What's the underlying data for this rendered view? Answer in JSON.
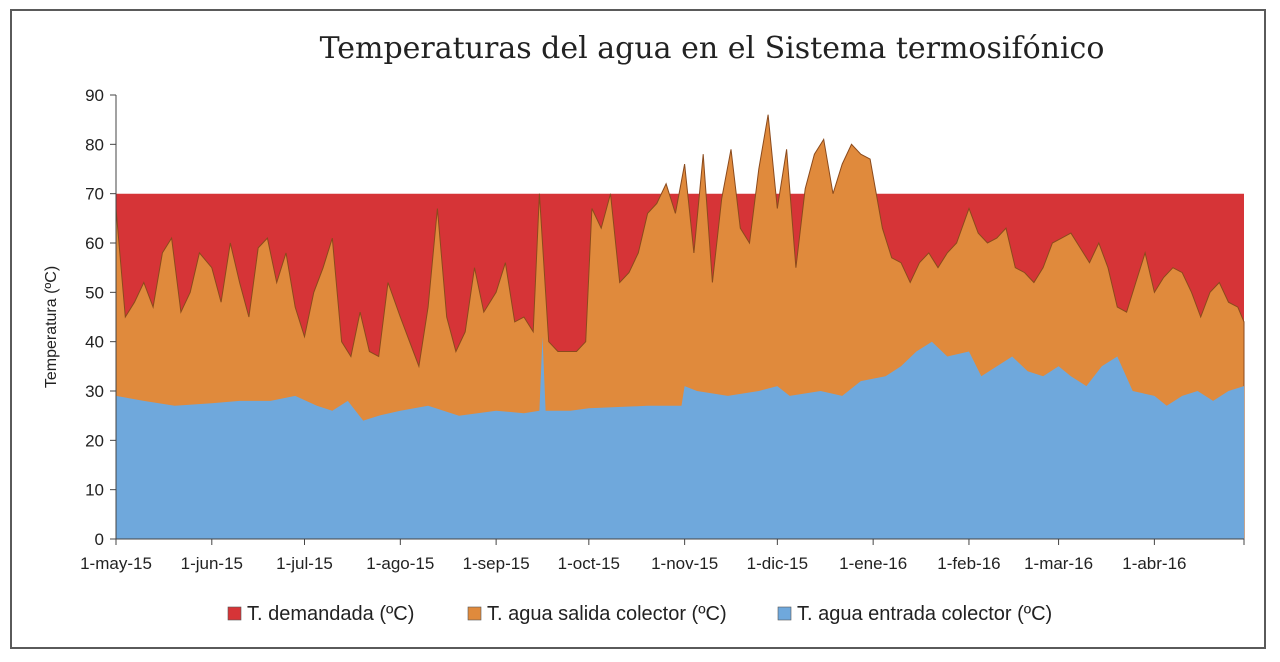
{
  "chart_data": {
    "type": "area",
    "title": "Temperaturas del agua en el Sistema termosifónico",
    "ylabel": "Temperatura (ºC)",
    "xlabel": "",
    "ylim": [
      0,
      90
    ],
    "yticks": [
      0,
      10,
      20,
      30,
      40,
      50,
      60,
      70,
      80,
      90
    ],
    "x_range": [
      "2015-05-01",
      "2016-04-30"
    ],
    "xticks": [
      {
        "date": "2015-05-01",
        "label": "1-may-15"
      },
      {
        "date": "2015-06-01",
        "label": "1-jun-15"
      },
      {
        "date": "2015-07-01",
        "label": "1-jul-15"
      },
      {
        "date": "2015-08-01",
        "label": "1-ago-15"
      },
      {
        "date": "2015-09-01",
        "label": "1-sep-15"
      },
      {
        "date": "2015-10-01",
        "label": "1-oct-15"
      },
      {
        "date": "2015-11-01",
        "label": "1-nov-15"
      },
      {
        "date": "2015-12-01",
        "label": "1-dic-15"
      },
      {
        "date": "2016-01-01",
        "label": "1-ene-16"
      },
      {
        "date": "2016-02-01",
        "label": "1-feb-16"
      },
      {
        "date": "2016-03-01",
        "label": "1-mar-16"
      },
      {
        "date": "2016-04-01",
        "label": "1-abr-16"
      }
    ],
    "grid": false,
    "legend_position": "bottom",
    "series": [
      {
        "name": "T. demandada (ºC)",
        "color": "#d63437",
        "points": [
          [
            "2015-05-01",
            70
          ],
          [
            "2016-04-30",
            70
          ]
        ]
      },
      {
        "name": "T. agua salida colector (ºC)",
        "color": "#e08a3c",
        "points": [
          [
            "2015-05-01",
            67
          ],
          [
            "2015-05-04",
            45
          ],
          [
            "2015-05-07",
            48
          ],
          [
            "2015-05-10",
            52
          ],
          [
            "2015-05-13",
            47
          ],
          [
            "2015-05-16",
            58
          ],
          [
            "2015-05-19",
            61
          ],
          [
            "2015-05-22",
            46
          ],
          [
            "2015-05-25",
            50
          ],
          [
            "2015-05-28",
            58
          ],
          [
            "2015-06-01",
            55
          ],
          [
            "2015-06-04",
            48
          ],
          [
            "2015-06-07",
            60
          ],
          [
            "2015-06-10",
            52
          ],
          [
            "2015-06-13",
            45
          ],
          [
            "2015-06-16",
            59
          ],
          [
            "2015-06-19",
            61
          ],
          [
            "2015-06-22",
            52
          ],
          [
            "2015-06-25",
            58
          ],
          [
            "2015-06-28",
            47
          ],
          [
            "2015-07-01",
            41
          ],
          [
            "2015-07-04",
            50
          ],
          [
            "2015-07-07",
            55
          ],
          [
            "2015-07-10",
            61
          ],
          [
            "2015-07-13",
            40
          ],
          [
            "2015-07-16",
            37
          ],
          [
            "2015-07-19",
            46
          ],
          [
            "2015-07-22",
            38
          ],
          [
            "2015-07-25",
            37
          ],
          [
            "2015-07-28",
            52
          ],
          [
            "2015-08-01",
            45
          ],
          [
            "2015-08-04",
            40
          ],
          [
            "2015-08-07",
            35
          ],
          [
            "2015-08-10",
            47
          ],
          [
            "2015-08-13",
            67
          ],
          [
            "2015-08-16",
            45
          ],
          [
            "2015-08-19",
            38
          ],
          [
            "2015-08-22",
            42
          ],
          [
            "2015-08-25",
            55
          ],
          [
            "2015-08-28",
            46
          ],
          [
            "2015-09-01",
            50
          ],
          [
            "2015-09-04",
            56
          ],
          [
            "2015-09-07",
            44
          ],
          [
            "2015-09-10",
            45
          ],
          [
            "2015-09-13",
            42
          ],
          [
            "2015-09-15",
            70
          ],
          [
            "2015-09-18",
            40
          ],
          [
            "2015-09-21",
            38
          ],
          [
            "2015-09-24",
            38
          ],
          [
            "2015-09-27",
            38
          ],
          [
            "2015-09-30",
            40
          ],
          [
            "2015-10-02",
            67
          ],
          [
            "2015-10-05",
            63
          ],
          [
            "2015-10-08",
            70
          ],
          [
            "2015-10-11",
            52
          ],
          [
            "2015-10-14",
            54
          ],
          [
            "2015-10-17",
            58
          ],
          [
            "2015-10-20",
            66
          ],
          [
            "2015-10-23",
            68
          ],
          [
            "2015-10-26",
            72
          ],
          [
            "2015-10-29",
            66
          ],
          [
            "2015-11-01",
            76
          ],
          [
            "2015-11-04",
            58
          ],
          [
            "2015-11-07",
            78
          ],
          [
            "2015-11-10",
            52
          ],
          [
            "2015-11-13",
            69
          ],
          [
            "2015-11-16",
            79
          ],
          [
            "2015-11-19",
            63
          ],
          [
            "2015-11-22",
            60
          ],
          [
            "2015-11-25",
            75
          ],
          [
            "2015-11-28",
            86
          ],
          [
            "2015-12-01",
            67
          ],
          [
            "2015-12-04",
            79
          ],
          [
            "2015-12-07",
            55
          ],
          [
            "2015-12-10",
            71
          ],
          [
            "2015-12-13",
            78
          ],
          [
            "2015-12-16",
            81
          ],
          [
            "2015-12-19",
            70
          ],
          [
            "2015-12-22",
            76
          ],
          [
            "2015-12-25",
            80
          ],
          [
            "2015-12-28",
            78
          ],
          [
            "2015-12-31",
            77
          ],
          [
            "2016-01-04",
            63
          ],
          [
            "2016-01-07",
            57
          ],
          [
            "2016-01-10",
            56
          ],
          [
            "2016-01-13",
            52
          ],
          [
            "2016-01-16",
            56
          ],
          [
            "2016-01-19",
            58
          ],
          [
            "2016-01-22",
            55
          ],
          [
            "2016-01-25",
            58
          ],
          [
            "2016-01-28",
            60
          ],
          [
            "2016-02-01",
            67
          ],
          [
            "2016-02-04",
            62
          ],
          [
            "2016-02-07",
            60
          ],
          [
            "2016-02-10",
            61
          ],
          [
            "2016-02-13",
            63
          ],
          [
            "2016-02-16",
            55
          ],
          [
            "2016-02-19",
            54
          ],
          [
            "2016-02-22",
            52
          ],
          [
            "2016-02-25",
            55
          ],
          [
            "2016-02-28",
            60
          ],
          [
            "2016-03-02",
            61
          ],
          [
            "2016-03-05",
            62
          ],
          [
            "2016-03-08",
            59
          ],
          [
            "2016-03-11",
            56
          ],
          [
            "2016-03-14",
            60
          ],
          [
            "2016-03-17",
            55
          ],
          [
            "2016-03-20",
            47
          ],
          [
            "2016-03-23",
            46
          ],
          [
            "2016-03-26",
            52
          ],
          [
            "2016-03-29",
            58
          ],
          [
            "2016-04-01",
            50
          ],
          [
            "2016-04-04",
            53
          ],
          [
            "2016-04-07",
            55
          ],
          [
            "2016-04-10",
            54
          ],
          [
            "2016-04-13",
            50
          ],
          [
            "2016-04-16",
            45
          ],
          [
            "2016-04-19",
            50
          ],
          [
            "2016-04-22",
            52
          ],
          [
            "2016-04-25",
            48
          ],
          [
            "2016-04-28",
            47
          ],
          [
            "2016-04-30",
            44
          ]
        ]
      },
      {
        "name": "T. agua entrada colector (ºC)",
        "color": "#6fa8dc",
        "points": [
          [
            "2015-05-01",
            29
          ],
          [
            "2015-05-10",
            28
          ],
          [
            "2015-05-20",
            27
          ],
          [
            "2015-06-01",
            27.5
          ],
          [
            "2015-06-10",
            28
          ],
          [
            "2015-06-20",
            28
          ],
          [
            "2015-06-28",
            29
          ],
          [
            "2015-07-05",
            27
          ],
          [
            "2015-07-10",
            26
          ],
          [
            "2015-07-15",
            28
          ],
          [
            "2015-07-20",
            24
          ],
          [
            "2015-07-25",
            25
          ],
          [
            "2015-08-01",
            26
          ],
          [
            "2015-08-10",
            27
          ],
          [
            "2015-08-20",
            25
          ],
          [
            "2015-09-01",
            26
          ],
          [
            "2015-09-10",
            25.5
          ],
          [
            "2015-09-15",
            26
          ],
          [
            "2015-09-16",
            41
          ],
          [
            "2015-09-17",
            26
          ],
          [
            "2015-09-25",
            26
          ],
          [
            "2015-10-01",
            26.5
          ],
          [
            "2015-10-20",
            27
          ],
          [
            "2015-10-31",
            27
          ],
          [
            "2015-11-01",
            31
          ],
          [
            "2015-11-05",
            30
          ],
          [
            "2015-11-15",
            29
          ],
          [
            "2015-11-25",
            30
          ],
          [
            "2015-12-01",
            31
          ],
          [
            "2015-12-05",
            29
          ],
          [
            "2015-12-15",
            30
          ],
          [
            "2015-12-22",
            29
          ],
          [
            "2015-12-28",
            32
          ],
          [
            "2016-01-05",
            33
          ],
          [
            "2016-01-10",
            35
          ],
          [
            "2016-01-15",
            38
          ],
          [
            "2016-01-20",
            40
          ],
          [
            "2016-01-25",
            37
          ],
          [
            "2016-02-01",
            38
          ],
          [
            "2016-02-05",
            33
          ],
          [
            "2016-02-15",
            37
          ],
          [
            "2016-02-20",
            34
          ],
          [
            "2016-02-25",
            33
          ],
          [
            "2016-03-01",
            35
          ],
          [
            "2016-03-05",
            33
          ],
          [
            "2016-03-10",
            31
          ],
          [
            "2016-03-15",
            35
          ],
          [
            "2016-03-20",
            37
          ],
          [
            "2016-03-25",
            30
          ],
          [
            "2016-04-01",
            29
          ],
          [
            "2016-04-05",
            27
          ],
          [
            "2016-04-10",
            29
          ],
          [
            "2016-04-15",
            30
          ],
          [
            "2016-04-20",
            28
          ],
          [
            "2016-04-25",
            30
          ],
          [
            "2016-04-30",
            31
          ]
        ]
      }
    ]
  }
}
